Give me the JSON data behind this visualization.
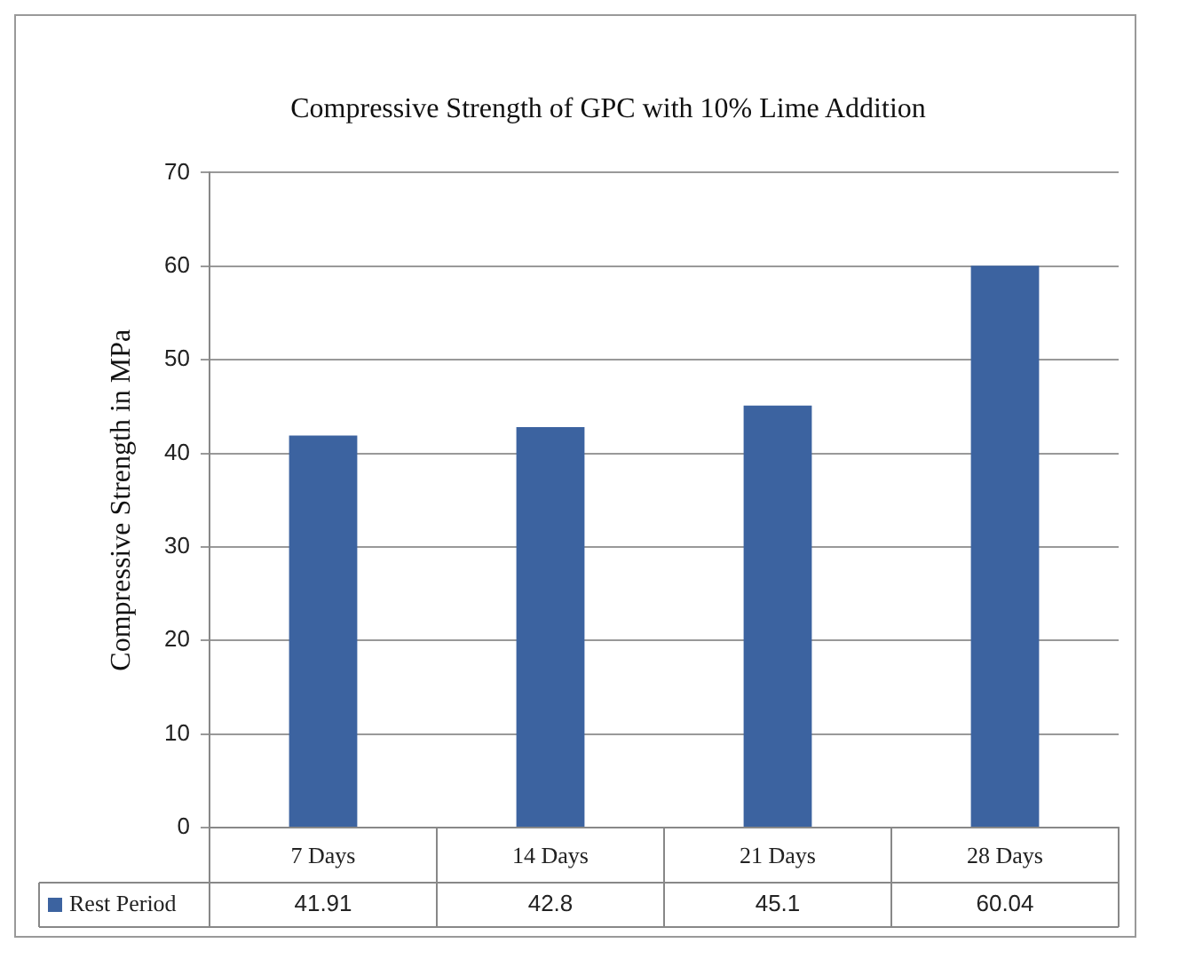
{
  "chart_data": {
    "type": "bar",
    "title": "Compressive Strength of GPC with 10% Lime Addition",
    "ylabel": "Compressive Strength in MPa",
    "categories": [
      "7 Days",
      "14 Days",
      "21 Days",
      "28 Days"
    ],
    "series": [
      {
        "name": "Rest Period",
        "color": "#3c63a0",
        "values": [
          41.91,
          42.8,
          45.1,
          60.04
        ]
      }
    ],
    "ylim": [
      0,
      70
    ],
    "yticks": [
      0,
      10,
      20,
      30,
      40,
      50,
      60,
      70
    ],
    "grid": "y",
    "legend": "bottom",
    "data_labels": true
  }
}
